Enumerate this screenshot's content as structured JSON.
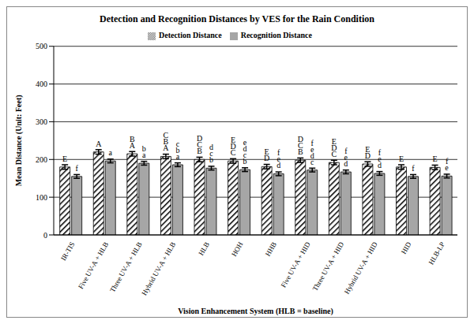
{
  "chart_data": {
    "type": "bar",
    "title": "Detection and Recognition Distances by VES for the Rain Condition",
    "x_label": "Vision Enhancement System (HLB = baseline)",
    "y_label": "Mean Distance (Unit: Feet)",
    "categories": [
      "IR-TIS",
      "Five UV-A + HLB",
      "Three UV-A + HLB",
      "Hybrid UV-A + HLB",
      "HLB",
      "HOH",
      "HHB",
      "Five UV-A + HID",
      "Three UV-A + HID",
      "Hybrid UV-A + HID",
      "HID",
      "HLB-LP"
    ],
    "series": [
      {
        "name": "Detection Distance",
        "color": "#000000",
        "values": [
          180,
          220,
          215,
          208,
          200,
          196,
          181,
          198,
          192,
          188,
          180,
          179
        ],
        "errors": [
          6,
          6,
          6,
          6,
          6,
          6,
          6,
          6,
          6,
          6,
          6,
          6
        ],
        "letters": [
          [
            "E"
          ],
          [
            "A"
          ],
          [
            "B",
            "A"
          ],
          [
            "C",
            "B",
            "A"
          ],
          [
            "D",
            "C",
            "B"
          ],
          [
            "E",
            "D",
            "C"
          ],
          [
            "E",
            "D"
          ],
          [
            "D",
            "C",
            "B"
          ],
          [
            "E",
            "D",
            "C"
          ],
          [
            "E",
            "D"
          ],
          [
            "E"
          ],
          [
            "E"
          ]
        ]
      },
      {
        "name": "Recognition Distance",
        "color": "#a6a6a6",
        "values": [
          155,
          196,
          190,
          186,
          177,
          173,
          162,
          172,
          167,
          163,
          155,
          156
        ],
        "errors": [
          5,
          5,
          5,
          5,
          5,
          5,
          5,
          5,
          5,
          5,
          5,
          5
        ],
        "letters": [
          [
            "f"
          ],
          [
            "a"
          ],
          [
            "b",
            "a"
          ],
          [
            "c",
            "b",
            "a"
          ],
          [
            "d",
            "c",
            "b"
          ],
          [
            "e",
            "d",
            "c",
            "b"
          ],
          [
            "f",
            "e",
            "d"
          ],
          [
            "f",
            "e",
            "d",
            "c"
          ],
          [
            "f",
            "e",
            "d"
          ],
          [
            "f",
            "e",
            "d"
          ],
          [
            "f"
          ],
          [
            "f",
            "e"
          ]
        ]
      }
    ],
    "ylim": [
      0,
      500
    ],
    "yticks": [
      0,
      100,
      200,
      300,
      400,
      500
    ],
    "grid": true,
    "legend": "top"
  }
}
